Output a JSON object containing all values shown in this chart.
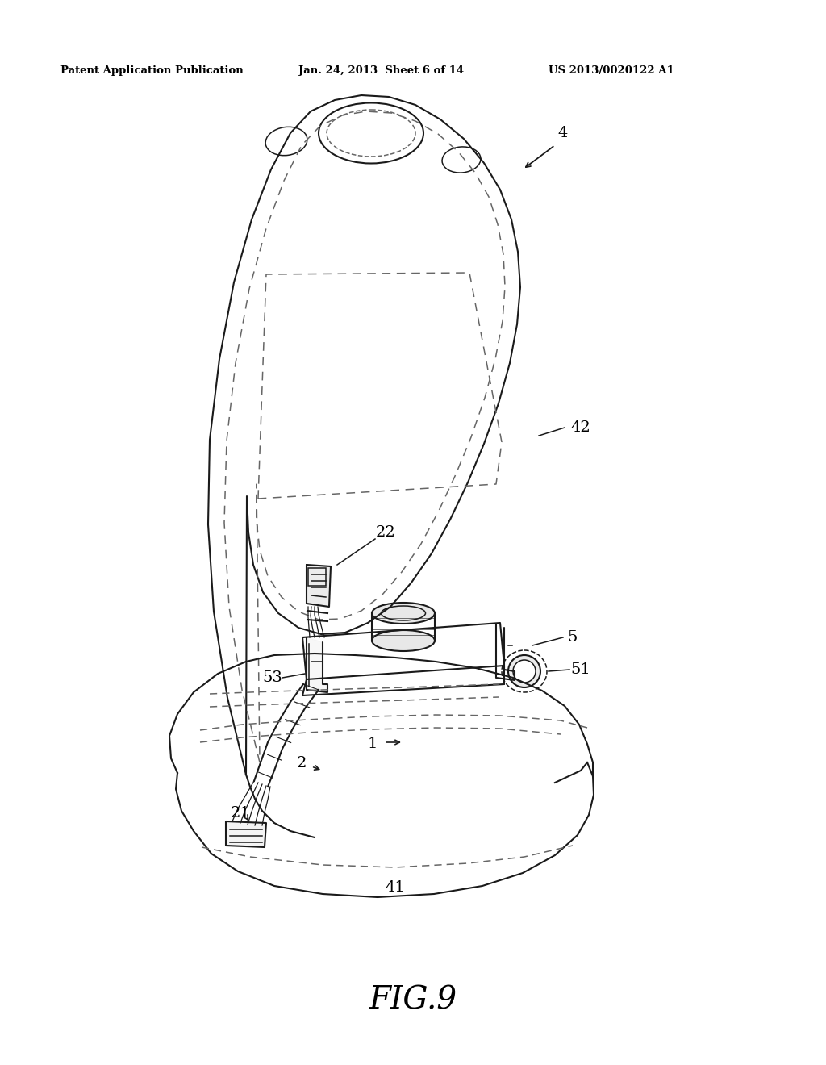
{
  "bg_color": "#ffffff",
  "header_left": "Patent Application Publication",
  "header_mid": "Jan. 24, 2013  Sheet 6 of 14",
  "header_right": "US 2013/0020122 A1",
  "figure_label": "FIG.9",
  "line_color": "#1a1a1a",
  "dash_color": "#666666",
  "lw_main": 1.5,
  "lw_thin": 1.1,
  "lw_dash": 1.1
}
